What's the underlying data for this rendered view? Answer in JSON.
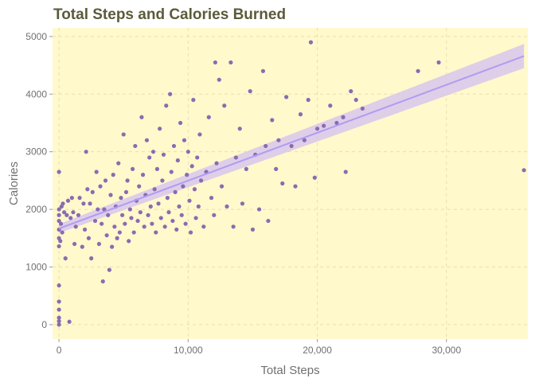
{
  "chart_data": {
    "type": "scatter",
    "title": "Total Steps and Calories Burned",
    "xlabel": "Total Steps",
    "ylabel": "Calories",
    "xlim": [
      -500,
      36300
    ],
    "ylim": [
      -250,
      5150
    ],
    "x_ticks": [
      0,
      10000,
      20000,
      30000
    ],
    "x_tick_labels": [
      "0",
      "10,000",
      "20,000",
      "30,000"
    ],
    "y_ticks": [
      0,
      1000,
      2000,
      3000,
      4000,
      5000
    ],
    "y_tick_labels": [
      "0",
      "1000",
      "2000",
      "3000",
      "4000",
      "5000"
    ],
    "grid": true,
    "legend": "none",
    "colors": {
      "panel_background": "#fff9cc",
      "grid": "#e8dfb0",
      "point": "#8a6bb1",
      "trend_line": "#b09cf2",
      "confidence_band": "#d8c7ec",
      "title_text": "#5b5b3a",
      "axis_text": "#707070"
    },
    "trend": {
      "method": "linear",
      "x": [
        0,
        36000
      ],
      "y": [
        1667,
        4660
      ],
      "ci_lower": [
        1590,
        4450
      ],
      "ci_upper": [
        1745,
        4870
      ]
    },
    "series": [
      {
        "points": [
          [
            0,
            0
          ],
          [
            0,
            60
          ],
          [
            0,
            120
          ],
          [
            0,
            260
          ],
          [
            0,
            400
          ],
          [
            0,
            680
          ],
          [
            0,
            1360
          ],
          [
            0,
            1500
          ],
          [
            0,
            1650
          ],
          [
            0,
            1800
          ],
          [
            0,
            1900
          ],
          [
            0,
            2000
          ],
          [
            0,
            2650
          ],
          [
            100,
            1450
          ],
          [
            150,
            1750
          ],
          [
            200,
            2050
          ],
          [
            250,
            1600
          ],
          [
            300,
            2100
          ],
          [
            400,
            1950
          ],
          [
            500,
            1150
          ],
          [
            600,
            1900
          ],
          [
            700,
            2150
          ],
          [
            800,
            50
          ],
          [
            900,
            1850
          ],
          [
            1000,
            2200
          ],
          [
            1100,
            1950
          ],
          [
            1200,
            1400
          ],
          [
            1300,
            1700
          ],
          [
            1500,
            1900
          ],
          [
            1600,
            2200
          ],
          [
            1800,
            1350
          ],
          [
            1900,
            2100
          ],
          [
            2000,
            1650
          ],
          [
            2100,
            3000
          ],
          [
            2200,
            2350
          ],
          [
            2300,
            1500
          ],
          [
            2400,
            2100
          ],
          [
            2500,
            1150
          ],
          [
            2600,
            2300
          ],
          [
            2800,
            1800
          ],
          [
            2900,
            2650
          ],
          [
            3000,
            2000
          ],
          [
            3100,
            1400
          ],
          [
            3200,
            2400
          ],
          [
            3300,
            1750
          ],
          [
            3400,
            750
          ],
          [
            3500,
            2000
          ],
          [
            3600,
            2500
          ],
          [
            3700,
            1550
          ],
          [
            3800,
            1900
          ],
          [
            3900,
            950
          ],
          [
            4000,
            2250
          ],
          [
            4100,
            1350
          ],
          [
            4200,
            2600
          ],
          [
            4300,
            1700
          ],
          [
            4400,
            2050
          ],
          [
            4500,
            1500
          ],
          [
            4600,
            2800
          ],
          [
            4700,
            1600
          ],
          [
            4800,
            2200
          ],
          [
            4900,
            1900
          ],
          [
            5000,
            3300
          ],
          [
            5100,
            1750
          ],
          [
            5200,
            2300
          ],
          [
            5300,
            2500
          ],
          [
            5400,
            1450
          ],
          [
            5500,
            2000
          ],
          [
            5600,
            1850
          ],
          [
            5700,
            2700
          ],
          [
            5800,
            1600
          ],
          [
            5900,
            3100
          ],
          [
            6000,
            2150
          ],
          [
            6100,
            1800
          ],
          [
            6200,
            2400
          ],
          [
            6300,
            1950
          ],
          [
            6400,
            3600
          ],
          [
            6500,
            2600
          ],
          [
            6600,
            1700
          ],
          [
            6700,
            2250
          ],
          [
            6800,
            3200
          ],
          [
            6900,
            1900
          ],
          [
            7000,
            2900
          ],
          [
            7100,
            2050
          ],
          [
            7200,
            1750
          ],
          [
            7300,
            3000
          ],
          [
            7400,
            2350
          ],
          [
            7500,
            1600
          ],
          [
            7600,
            2700
          ],
          [
            7700,
            2100
          ],
          [
            7800,
            3400
          ],
          [
            7900,
            1850
          ],
          [
            8000,
            2500
          ],
          [
            8100,
            2950
          ],
          [
            8200,
            1700
          ],
          [
            8300,
            3800
          ],
          [
            8400,
            2200
          ],
          [
            8500,
            1950
          ],
          [
            8600,
            4000
          ],
          [
            8700,
            2650
          ],
          [
            8800,
            1800
          ],
          [
            8900,
            3100
          ],
          [
            9000,
            2300
          ],
          [
            9100,
            1650
          ],
          [
            9200,
            2850
          ],
          [
            9300,
            2050
          ],
          [
            9400,
            3500
          ],
          [
            9500,
            1900
          ],
          [
            9600,
            2400
          ],
          [
            9700,
            3200
          ],
          [
            9800,
            1750
          ],
          [
            9900,
            2600
          ],
          [
            10000,
            3000
          ],
          [
            10100,
            2150
          ],
          [
            10200,
            1600
          ],
          [
            10300,
            2750
          ],
          [
            10400,
            3900
          ],
          [
            10500,
            2350
          ],
          [
            10600,
            1850
          ],
          [
            10700,
            2900
          ],
          [
            10800,
            2050
          ],
          [
            10900,
            3300
          ],
          [
            11000,
            2500
          ],
          [
            11200,
            1700
          ],
          [
            11400,
            2650
          ],
          [
            11600,
            3600
          ],
          [
            11800,
            2200
          ],
          [
            12000,
            1900
          ],
          [
            12100,
            4550
          ],
          [
            12200,
            2800
          ],
          [
            12400,
            4250
          ],
          [
            12600,
            2400
          ],
          [
            12800,
            3800
          ],
          [
            13000,
            2050
          ],
          [
            13300,
            4550
          ],
          [
            13500,
            1700
          ],
          [
            13700,
            2900
          ],
          [
            14000,
            3400
          ],
          [
            14200,
            2100
          ],
          [
            14500,
            2700
          ],
          [
            14800,
            4050
          ],
          [
            15000,
            1650
          ],
          [
            15200,
            2950
          ],
          [
            15500,
            2000
          ],
          [
            15800,
            4400
          ],
          [
            16000,
            3100
          ],
          [
            16200,
            1800
          ],
          [
            16500,
            3550
          ],
          [
            16800,
            2700
          ],
          [
            17000,
            3200
          ],
          [
            17300,
            2450
          ],
          [
            17600,
            3950
          ],
          [
            18000,
            3100
          ],
          [
            18300,
            2400
          ],
          [
            18700,
            3650
          ],
          [
            19000,
            3200
          ],
          [
            19300,
            3900
          ],
          [
            19500,
            4900
          ],
          [
            19800,
            2550
          ],
          [
            20000,
            3400
          ],
          [
            20500,
            3450
          ],
          [
            21000,
            3800
          ],
          [
            21500,
            3500
          ],
          [
            22000,
            3600
          ],
          [
            22200,
            2650
          ],
          [
            22600,
            4050
          ],
          [
            23000,
            3900
          ],
          [
            23500,
            3750
          ],
          [
            27800,
            4400
          ],
          [
            29400,
            4550
          ],
          [
            36000,
            2680
          ]
        ]
      }
    ]
  }
}
